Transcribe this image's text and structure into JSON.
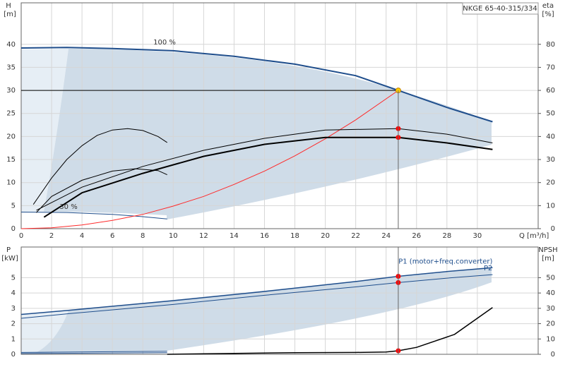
{
  "chart_data": [
    {
      "type": "line",
      "title": "NKGE 65-40-315/334",
      "ylabel": "H",
      "yunit": "[m]",
      "y2label": "eta",
      "y2unit": "[%]",
      "xlabel": "Q [m³/h]",
      "xlim": [
        0,
        34
      ],
      "xticks": [
        0,
        2,
        4,
        6,
        8,
        10,
        12,
        14,
        16,
        18,
        20,
        22,
        24,
        26,
        28,
        30
      ],
      "ylim": [
        0,
        49
      ],
      "yticks": [
        0,
        5,
        10,
        15,
        20,
        25,
        30,
        35,
        40
      ],
      "y2lim": [
        0,
        98
      ],
      "y2ticks": [
        0,
        10,
        20,
        30,
        40,
        50,
        60,
        70,
        80
      ],
      "grid": true,
      "annotations": [
        "100 %",
        "30 %"
      ],
      "duty_q": 24.8,
      "duty_h": 30,
      "series": [
        {
          "x": [
            0,
            3,
            6,
            10,
            14,
            18,
            22,
            24.8,
            28,
            31
          ],
          "values": [
            39.2,
            39.3,
            39.1,
            38.6,
            37.4,
            35.7,
            33.2,
            30,
            26.3,
            23.2
          ],
          "color": "#1f4e8c",
          "width": 2,
          "axis": "y"
        },
        {
          "x": [
            0,
            3,
            6,
            8,
            9.6
          ],
          "values": [
            3.6,
            3.5,
            3.1,
            2.6,
            2.1
          ],
          "color": "#1f4e8c",
          "width": 1,
          "axis": "y"
        },
        {
          "x": [
            0,
            2,
            4,
            6,
            8,
            10,
            12,
            14,
            16,
            18,
            20,
            22,
            24.8
          ],
          "values": [
            0,
            0.2,
            0.8,
            1.8,
            3.1,
            4.9,
            7,
            9.6,
            12.5,
            15.8,
            19.5,
            23.6,
            30
          ],
          "color": "#ff2a2a",
          "width": 1,
          "axis": "y"
        },
        {
          "x": [
            1.5,
            4,
            8,
            12,
            16,
            20,
            24.8,
            28,
            31
          ],
          "values": [
            5,
            15.6,
            24,
            31.4,
            36.6,
            39.6,
            39.6,
            37.2,
            34.4
          ],
          "color": "#000000",
          "width": 2,
          "axis": "y2"
        },
        {
          "x": [
            1,
            4,
            8,
            12,
            16,
            20,
            24.8,
            28,
            31
          ],
          "values": [
            8,
            18,
            27,
            34,
            39.2,
            42.8,
            43.4,
            41,
            37.2
          ],
          "color": "#000000",
          "width": 1,
          "axis": "y2"
        },
        {
          "x": [
            0.8,
            2,
            3,
            4,
            5,
            6,
            7,
            8,
            9,
            9.6
          ],
          "values": [
            10.5,
            22,
            30,
            36,
            40.5,
            42.8,
            43.4,
            42.6,
            40,
            37.4
          ],
          "color": "#000000",
          "width": 1,
          "axis": "y2"
        },
        {
          "x": [
            1,
            2,
            4,
            6,
            7.5,
            9,
            9.6
          ],
          "values": [
            7,
            14,
            21,
            25,
            26,
            25.2,
            23.4
          ],
          "color": "#000000",
          "width": 1,
          "axis": "y2"
        },
        {
          "x": [
            24.8
          ],
          "values": [
            30
          ],
          "color": "#ffcc00",
          "marker": true,
          "axis": "y"
        },
        {
          "x": [
            24.8
          ],
          "values": [
            43.4
          ],
          "color": "#ff0000",
          "marker": true,
          "axis": "y2"
        },
        {
          "x": [
            24.8
          ],
          "values": [
            39.6
          ],
          "color": "#ff0000",
          "marker": true,
          "axis": "y2"
        }
      ]
    },
    {
      "type": "line",
      "ylabel": "P",
      "yunit": "[kW]",
      "y2label": "NPSH",
      "y2unit": "[m]",
      "xlim": [
        0,
        34
      ],
      "xticks": [
        0,
        2,
        4,
        6,
        8,
        10,
        12,
        14,
        16,
        18,
        20,
        22,
        24,
        26,
        28,
        30
      ],
      "ylim": [
        0,
        7
      ],
      "yticks": [
        0,
        1,
        2,
        3,
        4,
        5
      ],
      "y2lim": [
        0,
        70
      ],
      "y2ticks": [
        0,
        10,
        20,
        30,
        40,
        50
      ],
      "grid": true,
      "series": [
        {
          "name": "P1 (motor+freq.converter)",
          "x": [
            0,
            3.1,
            10,
            16,
            22,
            24.8,
            28,
            31
          ],
          "values": [
            2.6,
            2.87,
            3.5,
            4.1,
            4.75,
            5.09,
            5.4,
            5.65
          ],
          "color": "#1f4e8c",
          "width": 1.5,
          "axis": "y"
        },
        {
          "name": "P2",
          "x": [
            0,
            3.1,
            10,
            16,
            22,
            24.8,
            28,
            31
          ],
          "values": [
            2.35,
            2.65,
            3.25,
            3.85,
            4.4,
            4.68,
            4.97,
            5.2
          ],
          "color": "#1f4e8c",
          "width": 1,
          "axis": "y"
        },
        {
          "x": [
            0,
            9.6
          ],
          "values": [
            0.12,
            0.2
          ],
          "color": "#1f4e8c",
          "width": 1,
          "axis": "y"
        },
        {
          "x": [
            0,
            9.6
          ],
          "values": [
            0.05,
            0.1
          ],
          "color": "#1f4e8c",
          "width": 1,
          "axis": "y"
        },
        {
          "x": [
            9.6,
            14,
            18,
            22,
            24,
            24.8,
            26,
            28.5,
            31
          ],
          "values": [
            0,
            0.6,
            1,
            1.2,
            1.5,
            2.3,
            4.5,
            13,
            30.5
          ],
          "color": "#000000",
          "width": 1.5,
          "axis": "y2"
        },
        {
          "x": [
            24.8
          ],
          "values": [
            5.09
          ],
          "color": "#ff0000",
          "marker": true,
          "axis": "y"
        },
        {
          "x": [
            24.8
          ],
          "values": [
            4.68
          ],
          "color": "#ff0000",
          "marker": true,
          "axis": "y"
        },
        {
          "x": [
            24.8
          ],
          "values": [
            2.3
          ],
          "color": "#ff0000",
          "marker": true,
          "axis": "y2"
        }
      ]
    }
  ]
}
